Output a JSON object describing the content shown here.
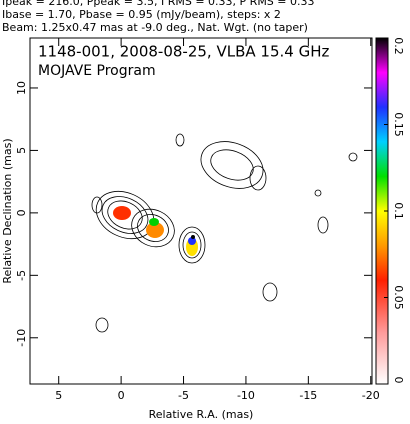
{
  "header": [
    "Ipeak = 216.0, Ppeak = 3.5, I RMS = 0.33, P RMS = 0.33",
    "Ibase = 1.70, Pbase = 0.95 (mJy/beam), steps: x 2",
    "Beam: 1.25x0.47 mas at -9.0 deg., Nat. Wgt. (no taper)"
  ],
  "chart_data": {
    "type": "contour",
    "title": "1148-001, 2008-08-25, VLBA 15.4 GHz",
    "subtitle": "MOJAVE Program",
    "x_label": "Relative R.A. (mas)",
    "y_label": "Relative Declination (mas)",
    "xlim": [
      7.3,
      -20.1
    ],
    "ylim": [
      -13.7,
      14
    ],
    "xticks": [
      5,
      0,
      -5,
      -10,
      -15,
      -20
    ],
    "yticks": [
      -10,
      -5,
      0,
      5,
      10
    ],
    "colorbar": {
      "lim": [
        0,
        0.2
      ],
      "ticks": [
        0,
        0.05,
        0.1,
        0.15,
        0.2
      ]
    }
  }
}
